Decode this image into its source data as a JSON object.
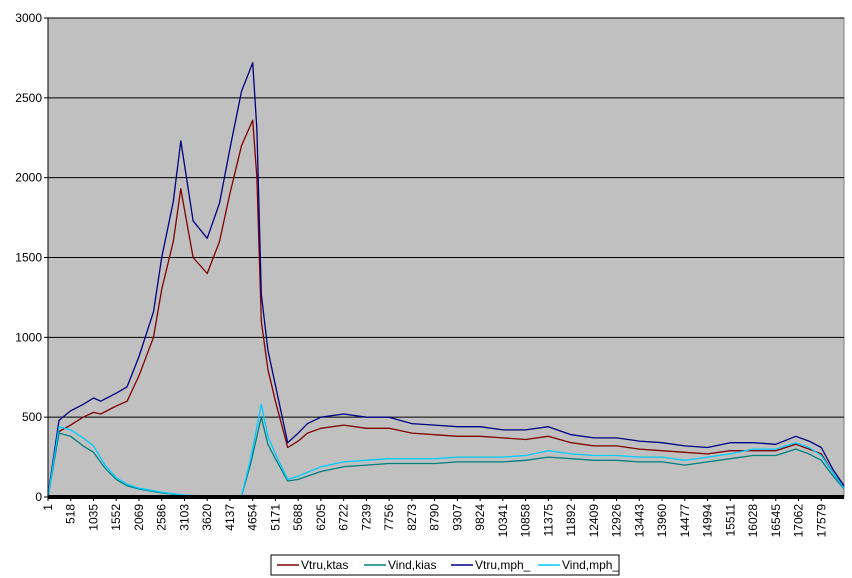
{
  "chart_data": {
    "type": "line",
    "title": "",
    "xlabel": "",
    "ylabel": "",
    "ylim": [
      0,
      3000
    ],
    "xlim": [
      1,
      18096
    ],
    "grid": true,
    "legend_position": "bottom",
    "background_color": "#c0c0c0",
    "y_ticks": [
      0,
      500,
      1000,
      1500,
      2000,
      2500,
      3000
    ],
    "x_ticks": [
      1,
      518,
      1035,
      1552,
      2069,
      2586,
      3103,
      3620,
      4137,
      4654,
      5171,
      5688,
      6205,
      6722,
      7239,
      7756,
      8273,
      8790,
      9307,
      9824,
      10341,
      10858,
      11375,
      11892,
      12409,
      12926,
      13443,
      13960,
      14477,
      14994,
      15511,
      16028,
      16545,
      17062,
      17579
    ],
    "series": [
      {
        "name": "Vtru,ktas",
        "color": "#800000",
        "points": [
          [
            1,
            10
          ],
          [
            250,
            410
          ],
          [
            518,
            450
          ],
          [
            800,
            500
          ],
          [
            1035,
            530
          ],
          [
            1200,
            520
          ],
          [
            1552,
            570
          ],
          [
            1800,
            600
          ],
          [
            2069,
            760
          ],
          [
            2400,
            1000
          ],
          [
            2586,
            1300
          ],
          [
            2850,
            1600
          ],
          [
            3020,
            1930
          ],
          [
            3103,
            1800
          ],
          [
            3300,
            1500
          ],
          [
            3620,
            1400
          ],
          [
            3900,
            1600
          ],
          [
            4137,
            1900
          ],
          [
            4400,
            2200
          ],
          [
            4654,
            2360
          ],
          [
            4750,
            2000
          ],
          [
            4850,
            1100
          ],
          [
            5000,
            800
          ],
          [
            5171,
            600
          ],
          [
            5450,
            310
          ],
          [
            5688,
            350
          ],
          [
            5900,
            400
          ],
          [
            6205,
            430
          ],
          [
            6722,
            450
          ],
          [
            7239,
            430
          ],
          [
            7756,
            430
          ],
          [
            8273,
            400
          ],
          [
            8790,
            390
          ],
          [
            9307,
            380
          ],
          [
            9824,
            380
          ],
          [
            10341,
            370
          ],
          [
            10858,
            360
          ],
          [
            11375,
            380
          ],
          [
            11892,
            340
          ],
          [
            12409,
            320
          ],
          [
            12926,
            320
          ],
          [
            13443,
            300
          ],
          [
            13960,
            290
          ],
          [
            14477,
            280
          ],
          [
            14994,
            270
          ],
          [
            15511,
            290
          ],
          [
            16028,
            290
          ],
          [
            16545,
            290
          ],
          [
            17000,
            330
          ],
          [
            17300,
            300
          ],
          [
            17579,
            270
          ],
          [
            17850,
            150
          ],
          [
            18096,
            60
          ]
        ]
      },
      {
        "name": "Vind,kias",
        "color": "#008080",
        "points": [
          [
            1,
            0
          ],
          [
            250,
            400
          ],
          [
            518,
            380
          ],
          [
            800,
            320
          ],
          [
            1035,
            280
          ],
          [
            1300,
            180
          ],
          [
            1552,
            110
          ],
          [
            1800,
            70
          ],
          [
            2069,
            50
          ],
          [
            2586,
            25
          ],
          [
            3103,
            10
          ],
          [
            3620,
            3
          ],
          [
            4137,
            2
          ],
          [
            4400,
            5
          ],
          [
            4600,
            200
          ],
          [
            4850,
            500
          ],
          [
            5000,
            330
          ],
          [
            5171,
            240
          ],
          [
            5450,
            100
          ],
          [
            5688,
            110
          ],
          [
            6205,
            160
          ],
          [
            6722,
            190
          ],
          [
            7239,
            200
          ],
          [
            7756,
            210
          ],
          [
            8273,
            210
          ],
          [
            8790,
            210
          ],
          [
            9307,
            220
          ],
          [
            9824,
            220
          ],
          [
            10341,
            220
          ],
          [
            10858,
            230
          ],
          [
            11375,
            250
          ],
          [
            11892,
            240
          ],
          [
            12409,
            230
          ],
          [
            12926,
            230
          ],
          [
            13443,
            220
          ],
          [
            13960,
            220
          ],
          [
            14477,
            200
          ],
          [
            14994,
            220
          ],
          [
            15511,
            240
          ],
          [
            16028,
            260
          ],
          [
            16545,
            260
          ],
          [
            17000,
            300
          ],
          [
            17300,
            270
          ],
          [
            17579,
            230
          ],
          [
            17850,
            130
          ],
          [
            18096,
            50
          ]
        ]
      },
      {
        "name": "Vtru,mph_",
        "color": "#000080",
        "points": [
          [
            1,
            10
          ],
          [
            250,
            480
          ],
          [
            518,
            540
          ],
          [
            800,
            580
          ],
          [
            1035,
            620
          ],
          [
            1200,
            600
          ],
          [
            1552,
            650
          ],
          [
            1800,
            690
          ],
          [
            2069,
            880
          ],
          [
            2400,
            1160
          ],
          [
            2586,
            1500
          ],
          [
            2850,
            1850
          ],
          [
            3020,
            2230
          ],
          [
            3103,
            2080
          ],
          [
            3300,
            1730
          ],
          [
            3620,
            1620
          ],
          [
            3900,
            1840
          ],
          [
            4137,
            2180
          ],
          [
            4400,
            2540
          ],
          [
            4654,
            2720
          ],
          [
            4750,
            2300
          ],
          [
            4850,
            1270
          ],
          [
            5000,
            920
          ],
          [
            5171,
            700
          ],
          [
            5450,
            340
          ],
          [
            5688,
            400
          ],
          [
            5900,
            460
          ],
          [
            6205,
            500
          ],
          [
            6722,
            520
          ],
          [
            7239,
            500
          ],
          [
            7756,
            500
          ],
          [
            8273,
            460
          ],
          [
            8790,
            450
          ],
          [
            9307,
            440
          ],
          [
            9824,
            440
          ],
          [
            10341,
            420
          ],
          [
            10858,
            420
          ],
          [
            11375,
            440
          ],
          [
            11892,
            390
          ],
          [
            12409,
            370
          ],
          [
            12926,
            370
          ],
          [
            13443,
            350
          ],
          [
            13960,
            340
          ],
          [
            14477,
            320
          ],
          [
            14994,
            310
          ],
          [
            15511,
            340
          ],
          [
            16028,
            340
          ],
          [
            16545,
            330
          ],
          [
            17000,
            380
          ],
          [
            17300,
            350
          ],
          [
            17579,
            310
          ],
          [
            17850,
            170
          ],
          [
            18096,
            70
          ]
        ]
      },
      {
        "name": "Vind,mph_",
        "color": "#00ccff",
        "points": [
          [
            1,
            0
          ],
          [
            250,
            440
          ],
          [
            518,
            420
          ],
          [
            800,
            370
          ],
          [
            1035,
            320
          ],
          [
            1300,
            200
          ],
          [
            1552,
            120
          ],
          [
            1800,
            80
          ],
          [
            2069,
            55
          ],
          [
            2586,
            30
          ],
          [
            3103,
            12
          ],
          [
            3620,
            4
          ],
          [
            4137,
            2
          ],
          [
            4400,
            6
          ],
          [
            4600,
            230
          ],
          [
            4850,
            580
          ],
          [
            5000,
            380
          ],
          [
            5171,
            270
          ],
          [
            5450,
            110
          ],
          [
            5688,
            130
          ],
          [
            6205,
            190
          ],
          [
            6722,
            220
          ],
          [
            7239,
            230
          ],
          [
            7756,
            240
          ],
          [
            8273,
            240
          ],
          [
            8790,
            240
          ],
          [
            9307,
            250
          ],
          [
            9824,
            250
          ],
          [
            10341,
            250
          ],
          [
            10858,
            260
          ],
          [
            11375,
            290
          ],
          [
            11892,
            270
          ],
          [
            12409,
            260
          ],
          [
            12926,
            260
          ],
          [
            13443,
            250
          ],
          [
            13960,
            250
          ],
          [
            14477,
            230
          ],
          [
            14994,
            250
          ],
          [
            15511,
            270
          ],
          [
            16028,
            300
          ],
          [
            16545,
            300
          ],
          [
            17000,
            340
          ],
          [
            17300,
            310
          ],
          [
            17579,
            260
          ],
          [
            17850,
            150
          ],
          [
            18096,
            55
          ]
        ]
      }
    ]
  }
}
